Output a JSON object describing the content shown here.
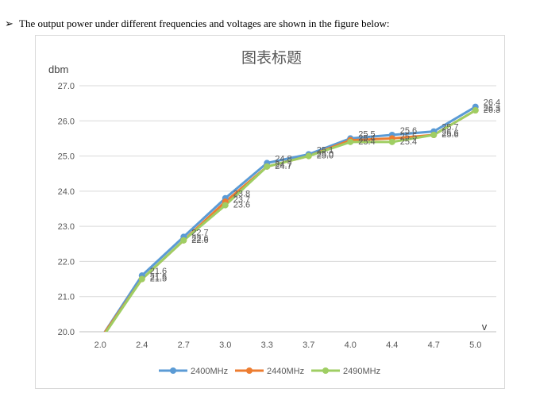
{
  "intro": {
    "bullet": "➢",
    "text": "The output power under different frequencies and voltages are shown in the figure below:"
  },
  "chart_data": {
    "type": "line",
    "title": "图表标题",
    "ylabel": "dbm",
    "xlabel": "v",
    "categories": [
      "2.0",
      "2.4",
      "2.7",
      "3.0",
      "3.3",
      "3.7",
      "4.0",
      "4.4",
      "4.7",
      "5.0"
    ],
    "ylim": [
      20.0,
      27.0
    ],
    "yticks": [
      "20.0",
      "21.0",
      "22.0",
      "23.0",
      "24.0",
      "25.0",
      "26.0",
      "27.0"
    ],
    "grid": true,
    "legend_position": "bottom",
    "series": [
      {
        "name": "2400MHz",
        "color": "#5b9bd5",
        "values": [
          19.8,
          21.6,
          22.7,
          23.8,
          24.8,
          25.05,
          25.5,
          25.6,
          25.7,
          26.4
        ],
        "labels": [
          "",
          "21.6",
          "22.7",
          "23.8",
          "24.8",
          "25.1",
          "25.5",
          "25.6",
          "25.7",
          "26.4"
        ]
      },
      {
        "name": "2440MHz",
        "color": "#ed7d31",
        "values": [
          19.8,
          21.5,
          22.6,
          23.7,
          24.7,
          25.0,
          25.45,
          25.5,
          25.6,
          26.3
        ],
        "labels": [
          "",
          "21.5",
          "22.6",
          "23.7",
          "24.7",
          "25.0",
          "25.4",
          "25.5",
          "25.6",
          "26.3"
        ]
      },
      {
        "name": "2490MHz",
        "color": "#9fce63",
        "values": [
          19.75,
          21.5,
          22.6,
          23.6,
          24.7,
          25.0,
          25.4,
          25.4,
          25.6,
          26.3
        ],
        "labels": [
          "",
          "21.5",
          "22.6",
          "23.6",
          "24.7",
          "25.0",
          "25.4",
          "25.4",
          "25.6",
          "26.3"
        ]
      }
    ]
  }
}
